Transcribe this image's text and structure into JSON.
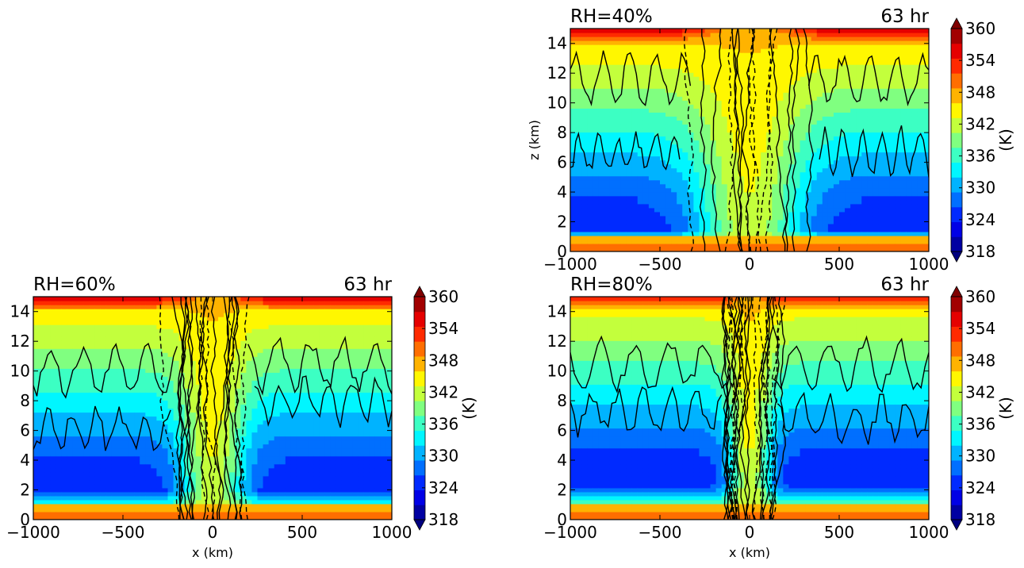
{
  "chart_data": [
    {
      "type": "heatmap",
      "panel": "top-right",
      "title_left": "RH=40%",
      "title_right": "63 hr",
      "xlabel": "",
      "ylabel": "z (km)",
      "xlim": [
        -1000,
        1000
      ],
      "ylim": [
        0,
        15
      ],
      "xticks": [
        "−1000",
        "−500",
        "0",
        "500",
        "1000"
      ],
      "yticks": [
        "0",
        "2",
        "4",
        "6",
        "8",
        "10",
        "12",
        "14"
      ],
      "colorbar": {
        "label": "(K)",
        "range": [
          318,
          360
        ],
        "ticks": [
          "318",
          "324",
          "330",
          "336",
          "342",
          "348",
          "354",
          "360"
        ]
      },
      "min_theta_layer_z": [
        1.5,
        3.5
      ],
      "core_halfwidth_km": 300,
      "notes": "Contour lines (solid and dashed) overlay equivalent potential temperature field"
    },
    {
      "type": "heatmap",
      "panel": "bottom-left",
      "title_left": "RH=60%",
      "title_right": "63 hr",
      "xlabel": "x (km)",
      "ylabel": "",
      "xlim": [
        -1000,
        1000
      ],
      "ylim": [
        0,
        15
      ],
      "xticks": [
        "−1000",
        "−500",
        "0",
        "500",
        "1000"
      ],
      "yticks": [
        "0",
        "2",
        "4",
        "6",
        "8",
        "10",
        "12",
        "14"
      ],
      "colorbar": {
        "label": "(K)",
        "range": [
          318,
          360
        ],
        "ticks": [
          "318",
          "324",
          "330",
          "336",
          "342",
          "348",
          "354",
          "360"
        ]
      },
      "min_theta_layer_z": [
        2,
        4
      ],
      "core_halfwidth_km": 180
    },
    {
      "type": "heatmap",
      "panel": "bottom-right",
      "title_left": "RH=80%",
      "title_right": "63 hr",
      "xlabel": "x (km)",
      "ylabel": "",
      "xlim": [
        -1000,
        1000
      ],
      "ylim": [
        0,
        15
      ],
      "xticks": [
        "−1000",
        "−500",
        "0",
        "500",
        "1000"
      ],
      "yticks": [
        "0",
        "2",
        "4",
        "6",
        "8",
        "10",
        "12",
        "14"
      ],
      "colorbar": {
        "label": "(K)",
        "range": [
          318,
          360
        ],
        "ticks": [
          "318",
          "324",
          "330",
          "336",
          "342",
          "348",
          "354",
          "360"
        ]
      },
      "min_theta_layer_z": [
        2.5,
        4.5
      ],
      "core_halfwidth_km": 120
    }
  ]
}
